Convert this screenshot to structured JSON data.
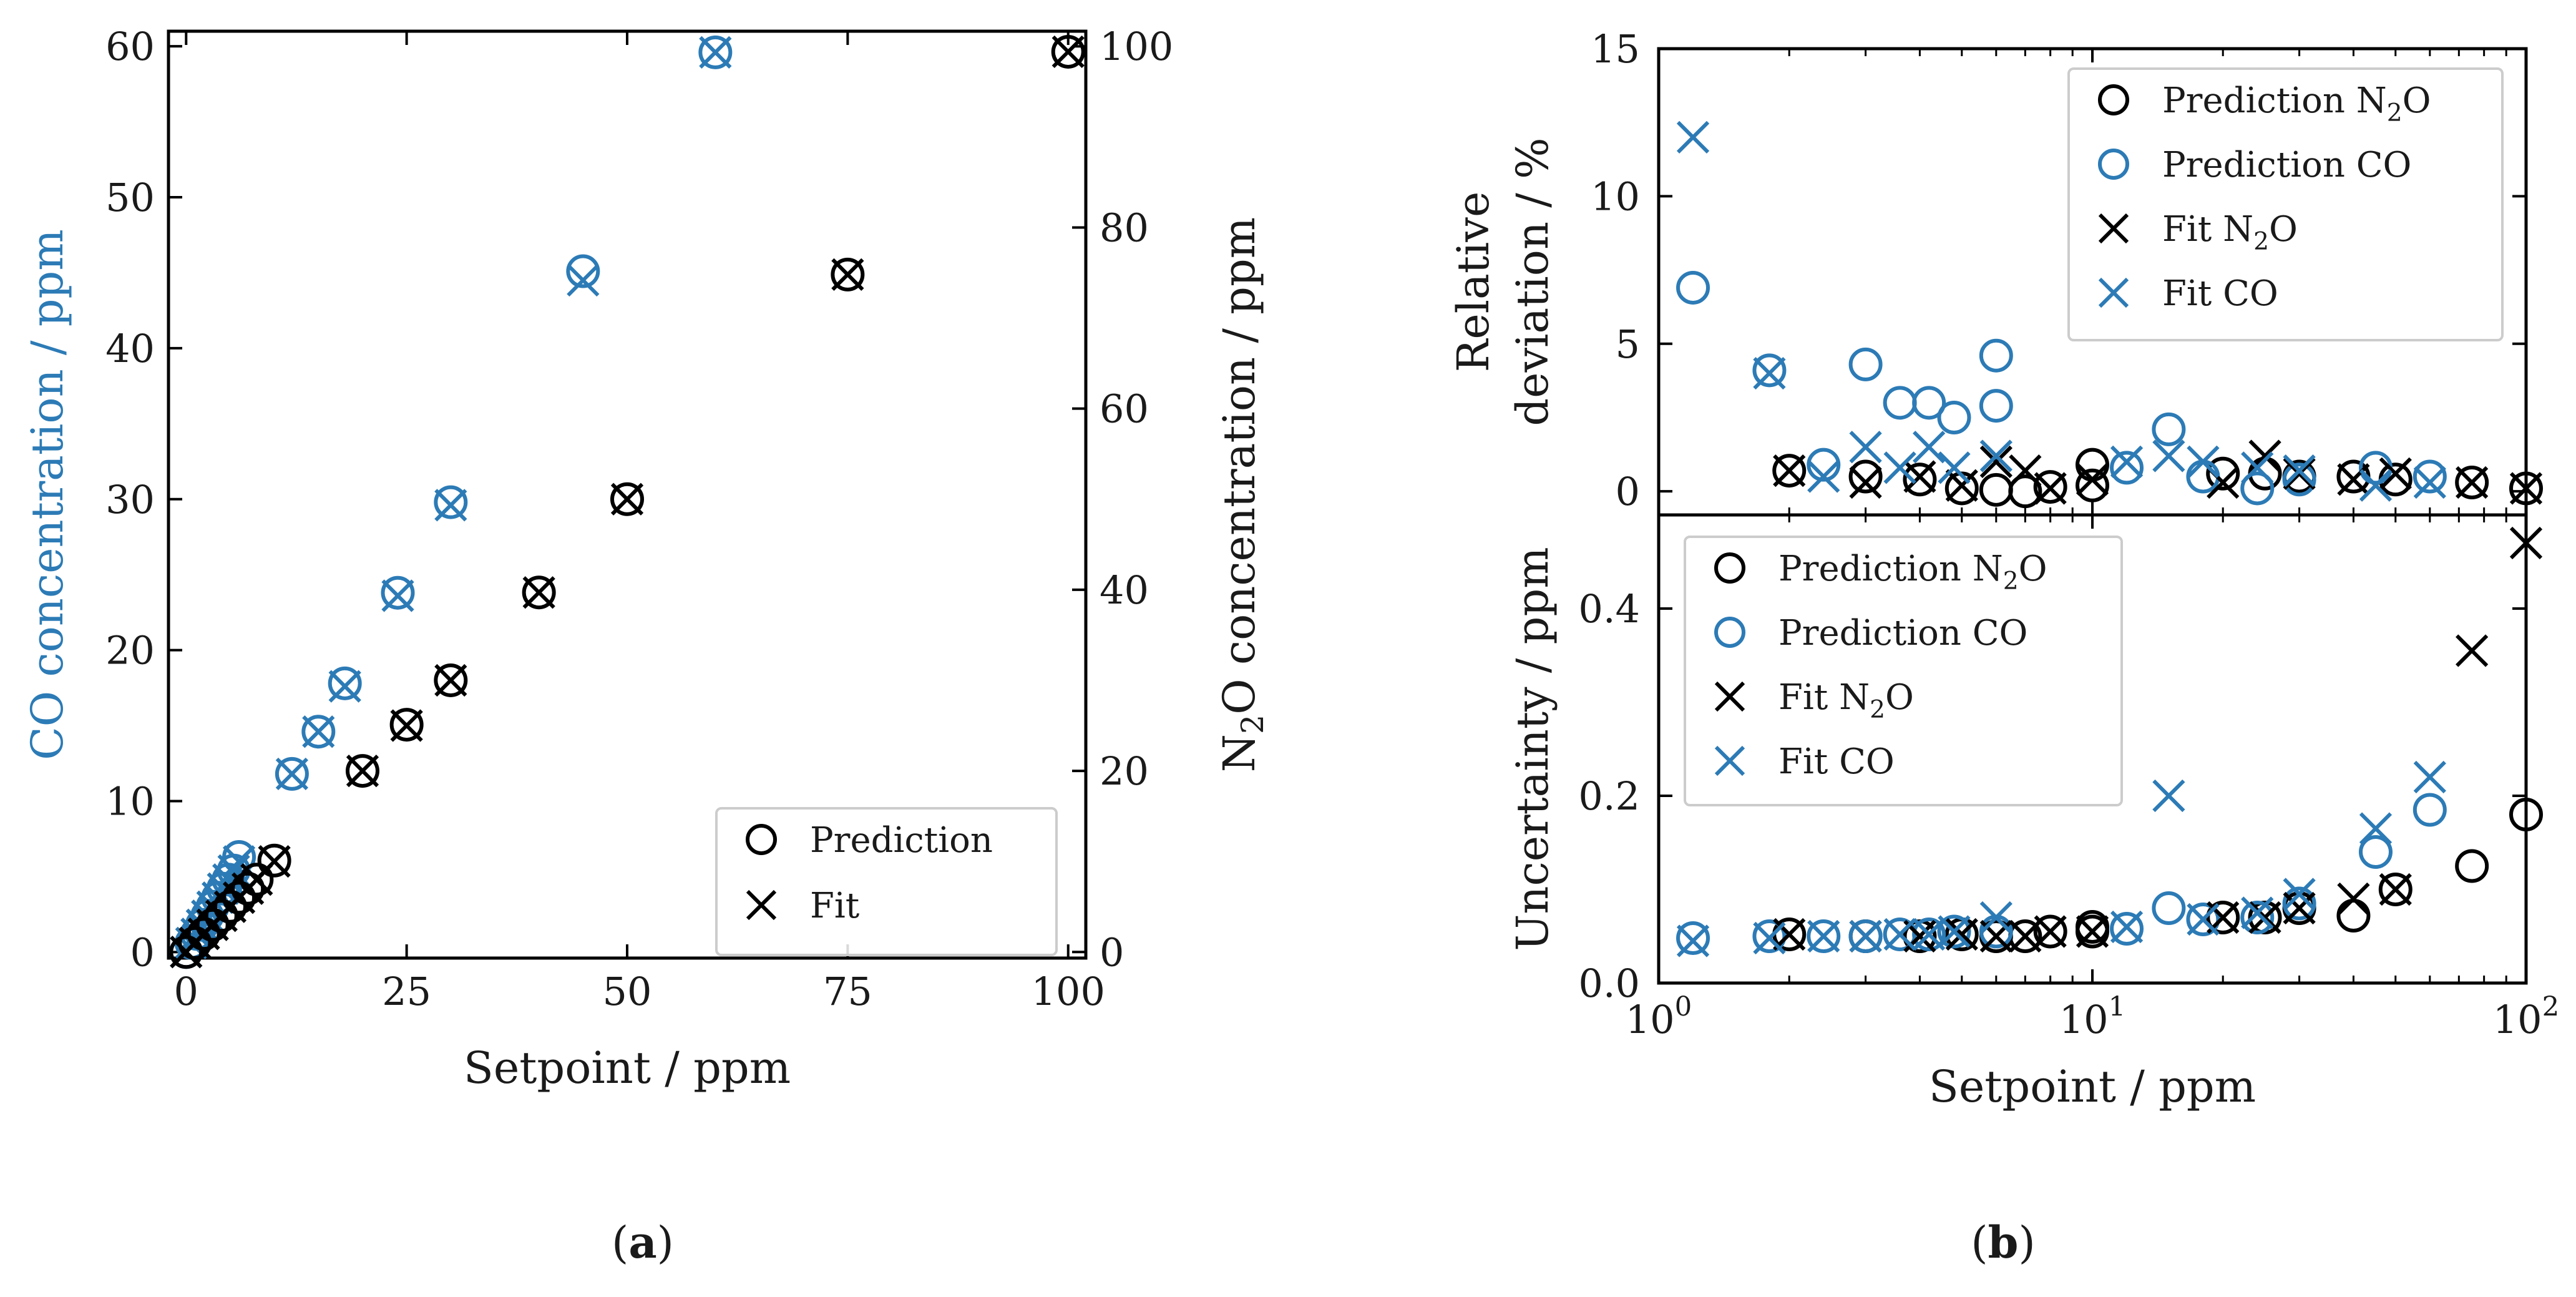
{
  "colors": {
    "n2o": "#000000",
    "co": "#2c7bb6",
    "axis": "#000000",
    "legend_border": "#cccccc"
  },
  "chart_data": [
    {
      "id": "a",
      "type": "scatter",
      "panel_label": "a",
      "xlabel": "Setpoint / ppm",
      "ylabel_left": "CO concentration / ppm",
      "ylabel_right": "N2O concentration / ppm",
      "ylabel_right_parts": [
        "N",
        "2",
        "O concentration / ppm"
      ],
      "xlim": [
        -2,
        102
      ],
      "ylim_left": [
        -0.4,
        61
      ],
      "ylim_right": [
        -0.67,
        101.67
      ],
      "xticks": [
        0,
        25,
        50,
        75,
        100
      ],
      "yticks_left": [
        0,
        10,
        20,
        30,
        40,
        50,
        60
      ],
      "yticks_right": [
        0,
        20,
        40,
        60,
        80,
        100
      ],
      "legend": {
        "position": "lower right",
        "entries": [
          {
            "label": "Prediction",
            "marker": "circle"
          },
          {
            "label": "Fit",
            "marker": "x"
          }
        ]
      },
      "series": [
        {
          "name": "Prediction CO",
          "axis": "left",
          "color": "co",
          "marker": "circle",
          "x": [
            0,
            0.6,
            1.2,
            1.8,
            2.4,
            3,
            3.6,
            4.2,
            4.8,
            5.4,
            6,
            12,
            15,
            18,
            24,
            30,
            45,
            60
          ],
          "y": [
            0,
            0.6,
            1.2,
            1.8,
            2.4,
            3.0,
            3.6,
            4.2,
            4.8,
            5.4,
            6.3,
            11.8,
            14.6,
            17.8,
            23.8,
            29.8,
            45.1,
            59.6
          ]
        },
        {
          "name": "Fit CO",
          "axis": "left",
          "color": "co",
          "marker": "x",
          "x": [
            0,
            0.6,
            1.2,
            1.8,
            2.4,
            3,
            3.6,
            4.2,
            4.8,
            5.4,
            6,
            12,
            15,
            18,
            24,
            30,
            45,
            60
          ],
          "y": [
            0,
            0.6,
            1.2,
            1.8,
            2.4,
            3.0,
            3.6,
            4.2,
            4.8,
            5.4,
            6.0,
            11.8,
            14.6,
            17.6,
            23.6,
            29.6,
            44.5,
            59.6
          ]
        },
        {
          "name": "Prediction N2O",
          "axis": "right",
          "color": "n2o",
          "marker": "circle",
          "x": [
            0,
            1,
            2,
            3,
            4,
            5,
            6,
            7,
            8,
            10,
            20,
            25,
            30,
            40,
            50,
            75,
            100
          ],
          "y": [
            0,
            1,
            2,
            3,
            4,
            5,
            6,
            7,
            8,
            10.1,
            20,
            25.1,
            30,
            39.7,
            50,
            74.8,
            99.4
          ]
        },
        {
          "name": "Fit N2O",
          "axis": "right",
          "color": "n2o",
          "marker": "x",
          "x": [
            0,
            1,
            2,
            3,
            4,
            5,
            6,
            7,
            8,
            10,
            20,
            25,
            30,
            40,
            50,
            75,
            100
          ],
          "y": [
            0,
            1,
            2,
            3,
            4,
            5,
            6,
            7,
            8,
            10,
            20,
            25,
            30,
            39.7,
            50,
            74.8,
            99.4
          ]
        }
      ]
    },
    {
      "id": "b_top",
      "type": "scatter",
      "panel_label": "b",
      "xscale": "log",
      "xlim": [
        1,
        100
      ],
      "ylim": [
        -0.8,
        15
      ],
      "ylabel_lines": [
        "Relative",
        "deviation / %"
      ],
      "yticks": [
        0,
        5,
        10,
        15
      ],
      "legend": {
        "position": "upper right",
        "entries": [
          {
            "label": "Prediction N2O",
            "parts": [
              "Prediction N",
              "2",
              "O"
            ],
            "marker": "circle",
            "color": "n2o"
          },
          {
            "label": "Prediction CO",
            "parts": [
              "Prediction CO",
              "",
              ""
            ],
            "marker": "circle",
            "color": "co"
          },
          {
            "label": "Fit N2O",
            "parts": [
              "Fit N",
              "2",
              "O"
            ],
            "marker": "x",
            "color": "n2o"
          },
          {
            "label": "Fit CO",
            "parts": [
              "Fit CO",
              "",
              ""
            ],
            "marker": "x",
            "color": "co"
          }
        ]
      },
      "series": [
        {
          "name": "Prediction N2O",
          "color": "n2o",
          "marker": "circle",
          "x": [
            2,
            3,
            4,
            5,
            6,
            7,
            8,
            10,
            10,
            20,
            25,
            30,
            40,
            50,
            75,
            100
          ],
          "y": [
            0.7,
            0.5,
            0.4,
            0.1,
            0.05,
            0.0,
            0.15,
            0.9,
            0.2,
            0.6,
            0.6,
            0.5,
            0.5,
            0.4,
            0.3,
            0.1
          ]
        },
        {
          "name": "Prediction CO",
          "color": "co",
          "marker": "circle",
          "x": [
            1.2,
            1.8,
            2.4,
            3,
            3.6,
            4.2,
            4.8,
            6,
            6,
            12,
            15,
            18,
            24,
            30,
            45,
            60
          ],
          "y": [
            6.9,
            4.1,
            0.9,
            4.3,
            3.0,
            3.0,
            2.5,
            4.6,
            2.9,
            0.8,
            2.1,
            0.5,
            0.1,
            0.4,
            0.8,
            0.5
          ]
        },
        {
          "name": "Fit N2O",
          "color": "n2o",
          "marker": "x",
          "x": [
            2,
            3,
            4,
            5,
            6,
            7,
            8,
            10,
            20,
            25,
            30,
            40,
            50,
            75,
            100
          ],
          "y": [
            0.7,
            0.3,
            0.5,
            0.2,
            1.0,
            0.7,
            0.1,
            0.4,
            0.3,
            1.2,
            0.6,
            0.4,
            0.6,
            0.3,
            0.1
          ]
        },
        {
          "name": "Fit CO",
          "color": "co",
          "marker": "x",
          "x": [
            1.2,
            1.8,
            2.4,
            3,
            3.6,
            4.2,
            4.8,
            6,
            12,
            15,
            18,
            24,
            30,
            45,
            60
          ],
          "y": [
            12.0,
            4.0,
            0.5,
            1.5,
            0.8,
            1.5,
            0.8,
            1.2,
            1.0,
            1.2,
            1.0,
            0.8,
            0.7,
            0.2,
            0.3
          ]
        }
      ]
    },
    {
      "id": "b_bottom",
      "type": "scatter",
      "xscale": "log",
      "xlim": [
        1,
        100
      ],
      "ylim": [
        0,
        0.5
      ],
      "xlabel": "Setpoint / ppm",
      "ylabel": "Uncertainty / ppm",
      "yticks": [
        0.0,
        0.2,
        0.4
      ],
      "ytick_labels": [
        "0.0",
        "0.2",
        "0.4"
      ],
      "xticks": [
        1,
        10,
        100
      ],
      "xtick_labels": [
        {
          "base": "10",
          "exp": "0"
        },
        {
          "base": "10",
          "exp": "1"
        },
        {
          "base": "10",
          "exp": "2"
        }
      ],
      "legend": {
        "position": "upper left",
        "entries": [
          {
            "label": "Prediction N2O",
            "parts": [
              "Prediction N",
              "2",
              "O"
            ],
            "marker": "circle",
            "color": "n2o"
          },
          {
            "label": "Prediction CO",
            "parts": [
              "Prediction CO",
              "",
              ""
            ],
            "marker": "circle",
            "color": "co"
          },
          {
            "label": "Fit N2O",
            "parts": [
              "Fit N",
              "2",
              "O"
            ],
            "marker": "x",
            "color": "n2o"
          },
          {
            "label": "Fit CO",
            "parts": [
              "Fit CO",
              "",
              ""
            ],
            "marker": "x",
            "color": "co"
          }
        ]
      },
      "series": [
        {
          "name": "Prediction N2O",
          "color": "n2o",
          "marker": "circle",
          "x": [
            2,
            3,
            4,
            5,
            6,
            7,
            8,
            10,
            10,
            20,
            25,
            30,
            40,
            50,
            75,
            100
          ],
          "y": [
            0.052,
            0.05,
            0.05,
            0.052,
            0.05,
            0.05,
            0.055,
            0.06,
            0.055,
            0.07,
            0.07,
            0.08,
            0.072,
            0.1,
            0.125,
            0.18
          ]
        },
        {
          "name": "Prediction CO",
          "color": "co",
          "marker": "circle",
          "x": [
            1.2,
            1.8,
            2.4,
            3,
            3.6,
            4.2,
            4.8,
            6,
            12,
            15,
            18,
            24,
            30,
            45,
            60
          ],
          "y": [
            0.048,
            0.05,
            0.05,
            0.05,
            0.052,
            0.052,
            0.055,
            0.055,
            0.058,
            0.08,
            0.068,
            0.07,
            0.085,
            0.14,
            0.185
          ]
        },
        {
          "name": "Fit N2O",
          "color": "n2o",
          "marker": "x",
          "x": [
            2,
            3,
            4,
            5,
            6,
            7,
            8,
            10,
            20,
            25,
            30,
            40,
            50,
            75,
            100
          ],
          "y": [
            0.052,
            0.05,
            0.05,
            0.052,
            0.05,
            0.05,
            0.055,
            0.055,
            0.07,
            0.07,
            0.08,
            0.09,
            0.1,
            0.355,
            0.47
          ]
        },
        {
          "name": "Fit CO",
          "color": "co",
          "marker": "x",
          "x": [
            1.2,
            1.8,
            2.4,
            3,
            3.6,
            4.2,
            4.8,
            6,
            12,
            15,
            18,
            24,
            30,
            45,
            60
          ],
          "y": [
            0.045,
            0.048,
            0.05,
            0.05,
            0.052,
            0.052,
            0.055,
            0.07,
            0.06,
            0.2,
            0.068,
            0.075,
            0.095,
            0.165,
            0.22
          ]
        }
      ]
    }
  ]
}
